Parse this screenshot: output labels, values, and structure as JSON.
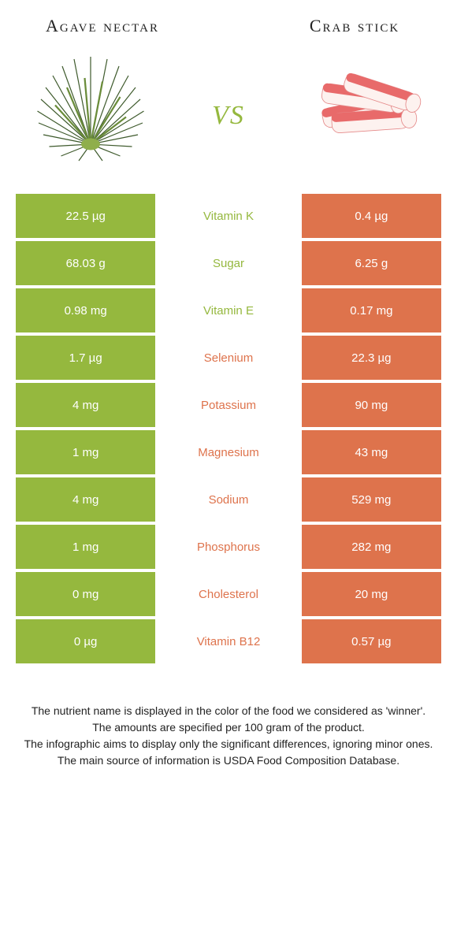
{
  "header": {
    "left_title": "Agave nectar",
    "right_title": "Crab stick"
  },
  "vs_label": "vs",
  "colors": {
    "left_bg": "#95b83e",
    "right_bg": "#de734c",
    "left_text": "#95b83e",
    "right_text": "#de734c"
  },
  "nutrients": [
    {
      "name": "Vitamin K",
      "left": "22.5 µg",
      "right": "0.4 µg",
      "winner": "left"
    },
    {
      "name": "Sugar",
      "left": "68.03 g",
      "right": "6.25 g",
      "winner": "left"
    },
    {
      "name": "Vitamin E",
      "left": "0.98 mg",
      "right": "0.17 mg",
      "winner": "left"
    },
    {
      "name": "Selenium",
      "left": "1.7 µg",
      "right": "22.3 µg",
      "winner": "right"
    },
    {
      "name": "Potassium",
      "left": "4 mg",
      "right": "90 mg",
      "winner": "right"
    },
    {
      "name": "Magnesium",
      "left": "1 mg",
      "right": "43 mg",
      "winner": "right"
    },
    {
      "name": "Sodium",
      "left": "4 mg",
      "right": "529 mg",
      "winner": "right"
    },
    {
      "name": "Phosphorus",
      "left": "1 mg",
      "right": "282 mg",
      "winner": "right"
    },
    {
      "name": "Cholesterol",
      "left": "0 mg",
      "right": "20 mg",
      "winner": "right"
    },
    {
      "name": "Vitamin B12",
      "left": "0 µg",
      "right": "0.57 µg",
      "winner": "right"
    }
  ],
  "footer": {
    "line1": "The nutrient name is displayed in the color of the food we considered as 'winner'.",
    "line2": "The amounts are specified per 100 gram of the product.",
    "line3": "The infographic aims to display only the significant differences, ignoring minor ones.",
    "line4": "The main source of information is USDA Food Composition Database."
  }
}
